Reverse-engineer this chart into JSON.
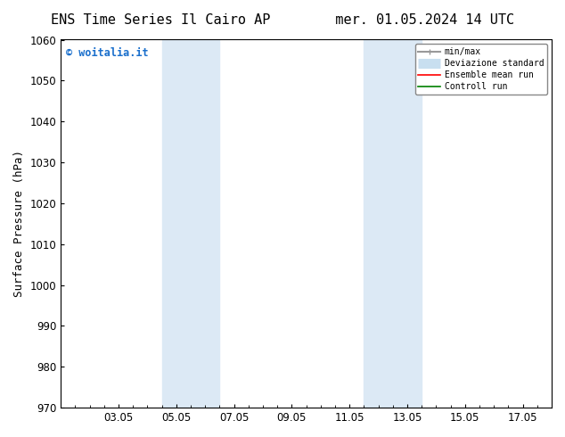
{
  "title_left": "ENS Time Series Il Cairo AP",
  "title_right": "mer. 01.05.2024 14 UTC",
  "ylabel": "Surface Pressure (hPa)",
  "ylim": [
    970,
    1060
  ],
  "yticks": [
    970,
    980,
    990,
    1000,
    1010,
    1020,
    1030,
    1040,
    1050,
    1060
  ],
  "xtick_labels": [
    "03.05",
    "05.05",
    "07.05",
    "09.05",
    "11.05",
    "13.05",
    "15.05",
    "17.05"
  ],
  "xtick_positions": [
    2,
    4,
    6,
    8,
    10,
    12,
    14,
    16
  ],
  "xlim": [
    0,
    17
  ],
  "shaded_bands": [
    {
      "x_start": 3.5,
      "x_end": 5.5,
      "color": "#dce9f5"
    },
    {
      "x_start": 10.5,
      "x_end": 12.5,
      "color": "#dce9f5"
    }
  ],
  "watermark_text": "© woitalia.it",
  "watermark_color": "#1a6fcc",
  "legend_entries": [
    {
      "label": "min/max",
      "color": "#999999",
      "lw": 1.5
    },
    {
      "label": "Deviazione standard",
      "color": "#c8dff0",
      "lw": 8
    },
    {
      "label": "Ensemble mean run",
      "color": "red",
      "lw": 1.2
    },
    {
      "label": "Controll run",
      "color": "green",
      "lw": 1.2
    }
  ],
  "background_color": "#ffffff",
  "spine_color": "#000000",
  "tick_color": "#000000",
  "title_fontsize": 11,
  "ylabel_fontsize": 9,
  "tick_fontsize": 8.5,
  "watermark_fontsize": 8.5,
  "legend_fontsize": 7
}
